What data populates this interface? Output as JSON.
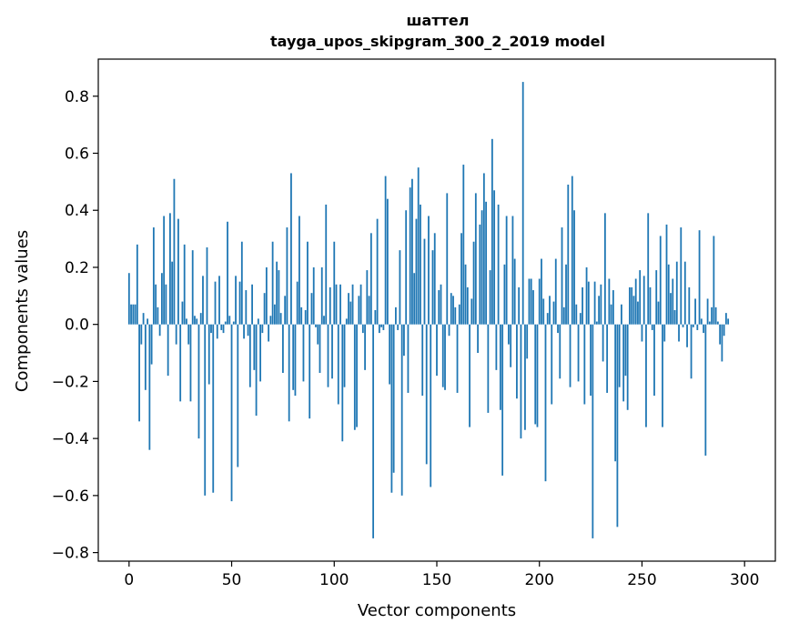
{
  "chart_data": {
    "type": "bar",
    "title": "шаттел",
    "subtitle": "tayga_upos_skipgram_300_2_2019 model",
    "xlabel": "Vector components",
    "ylabel": "Components values",
    "xlim": [
      -15,
      315
    ],
    "ylim": [
      -0.83,
      0.93
    ],
    "x_ticks": [
      0,
      50,
      100,
      150,
      200,
      250,
      300
    ],
    "x_tick_labels": [
      "0",
      "50",
      "100",
      "150",
      "200",
      "250",
      "300"
    ],
    "y_ticks": [
      -0.8,
      -0.6,
      -0.4,
      -0.2,
      0.0,
      0.2,
      0.4,
      0.6,
      0.8
    ],
    "y_tick_labels": [
      "−0.8",
      "−0.6",
      "−0.4",
      "−0.2",
      "0.0",
      "0.2",
      "0.4",
      "0.6",
      "0.8"
    ],
    "bar_color": "#1f77b4",
    "values": [
      0.18,
      0.07,
      0.07,
      0.07,
      0.28,
      -0.34,
      -0.07,
      0.04,
      -0.23,
      0.02,
      -0.44,
      -0.14,
      0.34,
      0.14,
      0.06,
      -0.04,
      0.18,
      0.38,
      0.14,
      -0.18,
      0.39,
      0.22,
      0.51,
      -0.07,
      0.37,
      -0.27,
      0.08,
      0.28,
      0.02,
      -0.07,
      -0.27,
      0.26,
      0.03,
      0.02,
      -0.4,
      0.04,
      0.17,
      -0.6,
      0.27,
      -0.21,
      -0.03,
      -0.59,
      0.15,
      -0.05,
      0.17,
      -0.02,
      -0.03,
      0.01,
      0.36,
      0.03,
      -0.62,
      0.01,
      0.17,
      -0.5,
      0.15,
      0.29,
      -0.05,
      0.12,
      -0.04,
      -0.22,
      0.14,
      -0.16,
      -0.32,
      0.02,
      -0.2,
      -0.03,
      0.11,
      0.2,
      -0.06,
      0.03,
      0.29,
      0.07,
      0.22,
      0.19,
      0.04,
      -0.17,
      0.1,
      0.34,
      -0.34,
      0.53,
      -0.23,
      -0.25,
      0.15,
      0.38,
      0.06,
      -0.2,
      0.05,
      0.29,
      -0.33,
      0.11,
      0.2,
      -0.01,
      -0.07,
      -0.17,
      0.2,
      0.03,
      0.42,
      -0.22,
      0.13,
      -0.19,
      0.29,
      0.14,
      -0.28,
      0.14,
      -0.41,
      -0.22,
      0.02,
      0.11,
      0.08,
      0.14,
      -0.37,
      -0.36,
      0.1,
      0.14,
      -0.03,
      -0.16,
      0.19,
      0.1,
      0.32,
      -0.75,
      0.05,
      0.37,
      -0.03,
      -0.01,
      -0.02,
      0.52,
      0.44,
      -0.21,
      -0.59,
      -0.52,
      0.06,
      -0.02,
      0.26,
      -0.6,
      -0.11,
      0.4,
      -0.24,
      0.48,
      0.51,
      0.18,
      0.37,
      0.55,
      0.42,
      -0.25,
      0.3,
      -0.49,
      0.38,
      -0.57,
      0.26,
      0.32,
      -0.18,
      0.12,
      0.14,
      -0.22,
      -0.23,
      0.46,
      -0.04,
      0.11,
      0.1,
      0.06,
      -0.24,
      0.07,
      0.32,
      0.56,
      0.21,
      0.13,
      -0.36,
      0.09,
      0.29,
      0.46,
      -0.1,
      0.35,
      0.4,
      0.53,
      0.43,
      -0.31,
      0.19,
      0.65,
      0.47,
      -0.16,
      0.42,
      -0.3,
      -0.53,
      0.21,
      0.38,
      -0.07,
      -0.15,
      0.38,
      0.23,
      -0.26,
      0.13,
      -0.4,
      0.85,
      -0.37,
      -0.12,
      0.16,
      0.16,
      0.12,
      -0.35,
      -0.36,
      0.16,
      0.23,
      0.09,
      -0.55,
      0.04,
      0.1,
      -0.28,
      0.08,
      0.23,
      -0.03,
      -0.19,
      0.34,
      0.06,
      0.21,
      0.49,
      -0.22,
      0.52,
      0.4,
      0.07,
      -0.2,
      0.04,
      0.13,
      -0.28,
      0.2,
      0.15,
      -0.25,
      -0.75,
      0.15,
      0.01,
      0.1,
      0.14,
      -0.13,
      0.39,
      -0.24,
      0.16,
      0.07,
      0.12,
      -0.48,
      -0.71,
      -0.22,
      0.07,
      -0.27,
      -0.18,
      -0.3,
      0.13,
      0.13,
      0.1,
      0.16,
      0.08,
      0.19,
      -0.06,
      0.17,
      -0.36,
      0.39,
      0.13,
      -0.02,
      -0.25,
      0.19,
      0.08,
      0.31,
      -0.36,
      -0.06,
      0.35,
      0.21,
      0.11,
      0.16,
      0.05,
      0.22,
      -0.06,
      0.34,
      -0.01,
      0.22,
      -0.08,
      0.13,
      -0.19,
      -0.01,
      0.09,
      -0.02,
      0.33,
      0.02,
      -0.03,
      -0.46,
      0.09,
      0.01,
      0.06,
      0.31,
      0.06,
      0.01,
      -0.07,
      -0.13,
      -0.04,
      0.04,
      0.02
    ]
  }
}
